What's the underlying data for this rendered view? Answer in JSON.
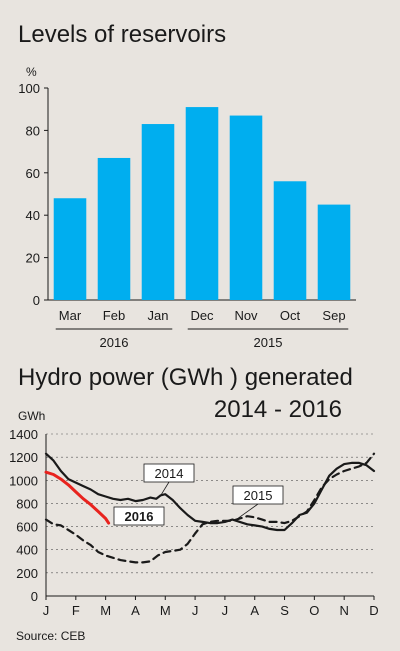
{
  "source": "Source: CEB",
  "chart_data": [
    {
      "type": "bar",
      "title": "Levels of reservoirs",
      "ylabel": "%",
      "ylim": [
        0,
        100
      ],
      "yticks": [
        0,
        20,
        40,
        60,
        80,
        100
      ],
      "categories": [
        "Mar",
        "Feb",
        "Jan",
        "Dec",
        "Nov",
        "Oct",
        "Sep"
      ],
      "values": [
        48,
        67,
        83,
        91,
        87,
        56,
        45
      ],
      "groups": [
        {
          "label": "2016",
          "categories": [
            "Mar",
            "Feb",
            "Jan"
          ]
        },
        {
          "label": "2015",
          "categories": [
            "Dec",
            "Nov",
            "Oct",
            "Sep"
          ]
        }
      ],
      "bar_color": "#00aeef",
      "grid": false
    },
    {
      "type": "line",
      "title": "Hydro power (GWh ) generated",
      "subtitle": "2014 - 2016",
      "ylabel": "GWh",
      "ylim": [
        0,
        1400
      ],
      "yticks": [
        0,
        200,
        400,
        600,
        800,
        1000,
        1200,
        1400
      ],
      "x": [
        "J",
        "F",
        "M",
        "A",
        "M",
        "J",
        "J",
        "A",
        "S",
        "O",
        "N",
        "D"
      ],
      "grid": "horizontal dashed",
      "series": [
        {
          "name": "2014",
          "style": "solid",
          "color": "#1a1a1a",
          "points": [
            [
              0,
              1230
            ],
            [
              0.25,
              1170
            ],
            [
              0.5,
              1080
            ],
            [
              0.75,
              1010
            ],
            [
              1,
              980
            ],
            [
              1.25,
              950
            ],
            [
              1.5,
              920
            ],
            [
              1.75,
              880
            ],
            [
              2,
              860
            ],
            [
              2.25,
              840
            ],
            [
              2.5,
              830
            ],
            [
              2.75,
              840
            ],
            [
              3,
              820
            ],
            [
              3.25,
              830
            ],
            [
              3.5,
              850
            ],
            [
              3.7,
              840
            ],
            [
              3.85,
              870
            ],
            [
              4,
              880
            ],
            [
              4.25,
              830
            ],
            [
              4.5,
              760
            ],
            [
              4.75,
              700
            ],
            [
              5,
              650
            ],
            [
              5.25,
              640
            ],
            [
              5.5,
              630
            ],
            [
              5.75,
              630
            ],
            [
              6,
              640
            ],
            [
              6.25,
              660
            ],
            [
              6.5,
              640
            ],
            [
              6.75,
              620
            ],
            [
              7,
              610
            ],
            [
              7.25,
              600
            ],
            [
              7.5,
              580
            ],
            [
              7.75,
              570
            ],
            [
              8,
              570
            ],
            [
              8.25,
              630
            ],
            [
              8.5,
              700
            ],
            [
              8.75,
              720
            ],
            [
              9,
              800
            ],
            [
              9.25,
              920
            ],
            [
              9.5,
              1040
            ],
            [
              9.75,
              1100
            ],
            [
              10,
              1140
            ],
            [
              10.25,
              1150
            ],
            [
              10.5,
              1150
            ],
            [
              10.75,
              1130
            ],
            [
              11,
              1080
            ]
          ]
        },
        {
          "name": "2015",
          "style": "dashed",
          "color": "#1a1a1a",
          "points": [
            [
              0,
              660
            ],
            [
              0.25,
              620
            ],
            [
              0.5,
              610
            ],
            [
              0.75,
              570
            ],
            [
              1,
              530
            ],
            [
              1.25,
              480
            ],
            [
              1.5,
              440
            ],
            [
              1.75,
              380
            ],
            [
              2,
              350
            ],
            [
              2.25,
              330
            ],
            [
              2.5,
              310
            ],
            [
              2.75,
              300
            ],
            [
              3,
              290
            ],
            [
              3.25,
              290
            ],
            [
              3.5,
              300
            ],
            [
              3.75,
              350
            ],
            [
              4,
              380
            ],
            [
              4.25,
              390
            ],
            [
              4.5,
              400
            ],
            [
              4.75,
              450
            ],
            [
              5,
              540
            ],
            [
              5.25,
              620
            ],
            [
              5.5,
              640
            ],
            [
              5.75,
              650
            ],
            [
              6,
              650
            ],
            [
              6.25,
              650
            ],
            [
              6.5,
              670
            ],
            [
              6.75,
              690
            ],
            [
              7,
              680
            ],
            [
              7.25,
              660
            ],
            [
              7.5,
              640
            ],
            [
              7.75,
              640
            ],
            [
              8,
              630
            ],
            [
              8.25,
              650
            ],
            [
              8.5,
              690
            ],
            [
              8.75,
              730
            ],
            [
              9,
              830
            ],
            [
              9.25,
              940
            ],
            [
              9.5,
              1010
            ],
            [
              9.75,
              1050
            ],
            [
              10,
              1080
            ],
            [
              10.25,
              1100
            ],
            [
              10.5,
              1120
            ],
            [
              10.75,
              1150
            ],
            [
              11,
              1230
            ]
          ]
        },
        {
          "name": "2016",
          "style": "solid",
          "color": "#e8231e",
          "points": [
            [
              0,
              1070
            ],
            [
              0.25,
              1050
            ],
            [
              0.5,
              1010
            ],
            [
              0.75,
              960
            ],
            [
              1,
              900
            ],
            [
              1.25,
              840
            ],
            [
              1.5,
              790
            ],
            [
              1.75,
              730
            ],
            [
              2,
              670
            ],
            [
              2.1,
              630
            ]
          ]
        }
      ]
    }
  ]
}
